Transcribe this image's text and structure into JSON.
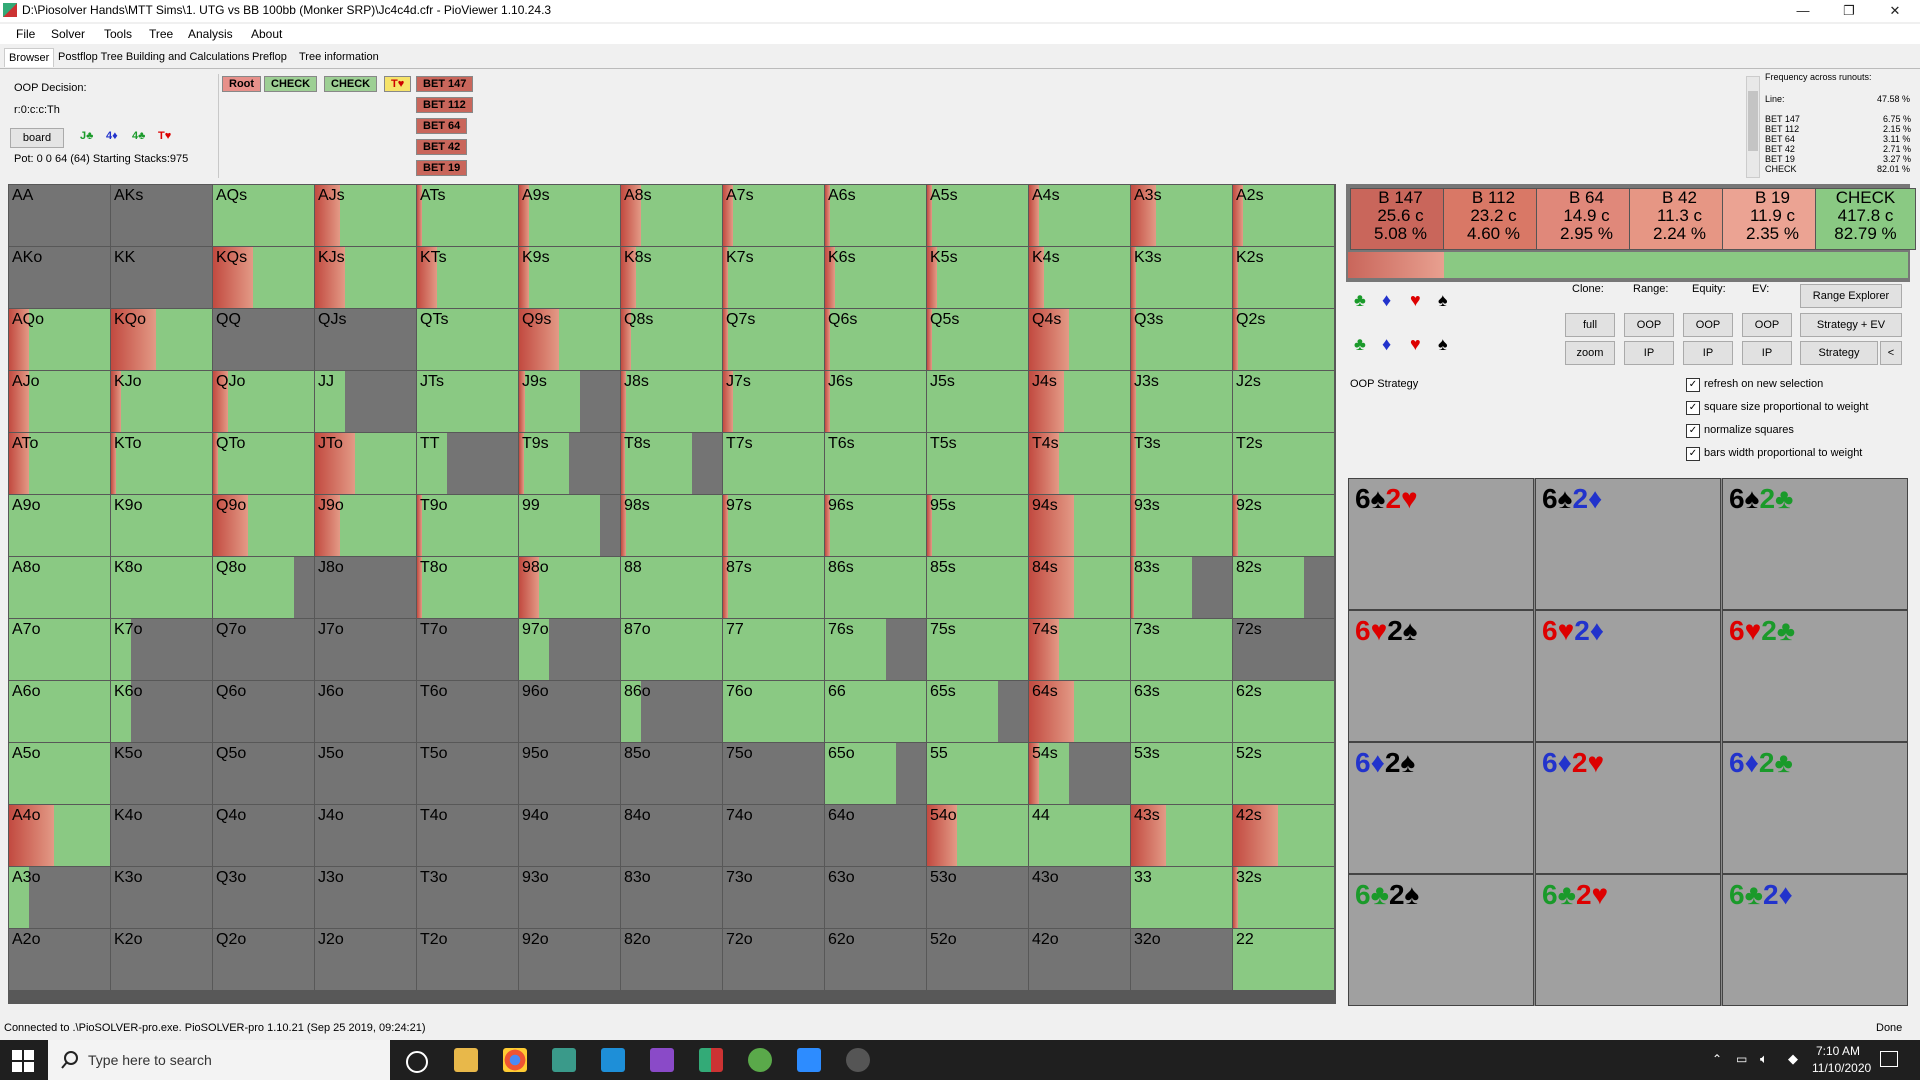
{
  "window": {
    "title": "D:\\Piosolver Hands\\MTT Sims\\1. UTG vs BB 100bb (Monker SRP)\\Jc4c4d.cfr - PioViewer 1.10.24.3",
    "minimize": "—",
    "maximize": "❐",
    "close": "✕"
  },
  "menu": [
    "File",
    "Solver",
    "Tools",
    "Tree",
    "Analysis",
    "About"
  ],
  "tabs": [
    "Browser",
    "Postflop Tree Building and Calculations",
    "Preflop",
    "Tree information"
  ],
  "info": {
    "decision": "OOP Decision:",
    "line": "r:0:c:c:Th",
    "board_button": "board",
    "board_cards": [
      "J♣",
      "4♦",
      "4♣",
      "T♥"
    ],
    "pot": "Pot: 0 0 64 (64) Starting Stacks:975"
  },
  "actions": {
    "root": "Root",
    "check1": "CHECK",
    "check2": "CHECK",
    "card": "T♥",
    "bets": [
      "BET 147",
      "BET 112",
      "BET 64",
      "BET 42",
      "BET 19"
    ]
  },
  "freq_panel": {
    "title": "Frequency across runouts:",
    "line_label": "Line:",
    "line_value": "47.58 %",
    "rows": [
      {
        "label": "BET 147",
        "value": "6.75 %"
      },
      {
        "label": "BET 112",
        "value": "2.15 %"
      },
      {
        "label": "BET 64",
        "value": "3.11 %"
      },
      {
        "label": "BET 42",
        "value": "2.71 %"
      },
      {
        "label": "BET 19",
        "value": "3.27 %"
      },
      {
        "label": "CHECK",
        "value": "82.01 %"
      }
    ]
  },
  "strategy_summary": [
    {
      "name": "B 147",
      "combos": "25.6 c",
      "pct": "5.08 %",
      "color": "#c9665b"
    },
    {
      "name": "B 112",
      "combos": "23.2 c",
      "pct": "4.60 %",
      "color": "#d97866"
    },
    {
      "name": "B 64",
      "combos": "14.9 c",
      "pct": "2.95 %",
      "color": "#e0887a"
    },
    {
      "name": "B 42",
      "combos": "11.3 c",
      "pct": "2.24 %",
      "color": "#e69684"
    },
    {
      "name": "B 19",
      "combos": "11.9 c",
      "pct": "2.35 %",
      "color": "#eba393"
    },
    {
      "name": "CHECK",
      "combos": "417.8 c",
      "pct": "82.79 %",
      "color": "#8ac983"
    }
  ],
  "controls": {
    "clone": "Clone:",
    "range": "Range:",
    "equity": "Equity:",
    "ev": "EV:",
    "range_explorer": "Range Explorer",
    "full": "full",
    "zoom": "zoom",
    "oop": "OOP",
    "ip": "IP",
    "strategy_ev": "Strategy + EV",
    "strategy": "Strategy",
    "collapse": "<",
    "oop_strategy": "OOP Strategy"
  },
  "checkboxes": [
    {
      "label": "refresh on new selection",
      "checked": true
    },
    {
      "label": "square size proportional to weight",
      "checked": true
    },
    {
      "label": "normalize squares",
      "checked": true
    },
    {
      "label": "bars width proportional to weight",
      "checked": true
    }
  ],
  "combos": [
    [
      {
        "r1": "6",
        "s1": "♠",
        "c1": "#000",
        "r2": "2",
        "s2": "♥",
        "c2": "#d00"
      },
      {
        "r1": "6",
        "s1": "♠",
        "c1": "#000",
        "r2": "2",
        "s2": "♦",
        "c2": "#2233cc"
      },
      {
        "r1": "6",
        "s1": "♠",
        "c1": "#000",
        "r2": "2",
        "s2": "♣",
        "c2": "#1a9a2a"
      }
    ],
    [
      {
        "r1": "6",
        "s1": "♥",
        "c1": "#d00",
        "r2": "2",
        "s2": "♠",
        "c2": "#000"
      },
      {
        "r1": "6",
        "s1": "♥",
        "c1": "#d00",
        "r2": "2",
        "s2": "♦",
        "c2": "#2233cc"
      },
      {
        "r1": "6",
        "s1": "♥",
        "c1": "#d00",
        "r2": "2",
        "s2": "♣",
        "c2": "#1a9a2a"
      }
    ],
    [
      {
        "r1": "6",
        "s1": "♦",
        "c1": "#2233cc",
        "r2": "2",
        "s2": "♠",
        "c2": "#000"
      },
      {
        "r1": "6",
        "s1": "♦",
        "c1": "#2233cc",
        "r2": "2",
        "s2": "♥",
        "c2": "#d00"
      },
      {
        "r1": "6",
        "s1": "♦",
        "c1": "#2233cc",
        "r2": "2",
        "s2": "♣",
        "c2": "#1a9a2a"
      }
    ],
    [
      {
        "r1": "6",
        "s1": "♣",
        "c1": "#1a9a2a",
        "r2": "2",
        "s2": "♠",
        "c2": "#000"
      },
      {
        "r1": "6",
        "s1": "♣",
        "c1": "#1a9a2a",
        "r2": "2",
        "s2": "♥",
        "c2": "#d00"
      },
      {
        "r1": "6",
        "s1": "♣",
        "c1": "#1a9a2a",
        "r2": "2",
        "s2": "♦",
        "c2": "#2233cc"
      }
    ]
  ],
  "grid": {
    "rows": [
      [
        "AA",
        "AKs",
        "AQs",
        "AJs",
        "ATs",
        "A9s",
        "A8s",
        "A7s",
        "A6s",
        "A5s",
        "A4s",
        "A3s",
        "A2s"
      ],
      [
        "AKo",
        "KK",
        "KQs",
        "KJs",
        "KTs",
        "K9s",
        "K8s",
        "K7s",
        "K6s",
        "K5s",
        "K4s",
        "K3s",
        "K2s"
      ],
      [
        "AQo",
        "KQo",
        "QQ",
        "QJs",
        "QTs",
        "Q9s",
        "Q8s",
        "Q7s",
        "Q6s",
        "Q5s",
        "Q4s",
        "Q3s",
        "Q2s"
      ],
      [
        "AJo",
        "KJo",
        "QJo",
        "JJ",
        "JTs",
        "J9s",
        "J8s",
        "J7s",
        "J6s",
        "J5s",
        "J4s",
        "J3s",
        "J2s"
      ],
      [
        "ATo",
        "KTo",
        "QTo",
        "JTo",
        "TT",
        "T9s",
        "T8s",
        "T7s",
        "T6s",
        "T5s",
        "T4s",
        "T3s",
        "T2s"
      ],
      [
        "A9o",
        "K9o",
        "Q9o",
        "J9o",
        "T9o",
        "99",
        "98s",
        "97s",
        "96s",
        "95s",
        "94s",
        "93s",
        "92s"
      ],
      [
        "A8o",
        "K8o",
        "Q8o",
        "J8o",
        "T8o",
        "98o",
        "88",
        "87s",
        "86s",
        "85s",
        "84s",
        "83s",
        "82s"
      ],
      [
        "A7o",
        "K7o",
        "Q7o",
        "J7o",
        "T7o",
        "97o",
        "87o",
        "77",
        "76s",
        "75s",
        "74s",
        "73s",
        "72s"
      ],
      [
        "A6o",
        "K6o",
        "Q6o",
        "J6o",
        "T6o",
        "96o",
        "86o",
        "76o",
        "66",
        "65s",
        "64s",
        "63s",
        "62s"
      ],
      [
        "A5o",
        "K5o",
        "Q5o",
        "J5o",
        "T5o",
        "95o",
        "85o",
        "75o",
        "65o",
        "55",
        "54s",
        "53s",
        "52s"
      ],
      [
        "A4o",
        "K4o",
        "Q4o",
        "J4o",
        "T4o",
        "94o",
        "84o",
        "74o",
        "64o",
        "54o",
        "44",
        "43s",
        "42s"
      ],
      [
        "A3o",
        "K3o",
        "Q3o",
        "J3o",
        "T3o",
        "93o",
        "83o",
        "73o",
        "63o",
        "53o",
        "43o",
        "33",
        "32s"
      ],
      [
        "A2o",
        "K2o",
        "Q2o",
        "J2o",
        "T2o",
        "92o",
        "82o",
        "72o",
        "62o",
        "52o",
        "42o",
        "32o",
        "22"
      ]
    ],
    "weights": [
      [
        0,
        0,
        1,
        1,
        1,
        1,
        1,
        1,
        1,
        1,
        1,
        1,
        1
      ],
      [
        0,
        0,
        1,
        1,
        1,
        1,
        1,
        1,
        1,
        1,
        1,
        1,
        1
      ],
      [
        1,
        1,
        0,
        0,
        1,
        1,
        1,
        1,
        1,
        1,
        1,
        1,
        1
      ],
      [
        1,
        1,
        1,
        0.3,
        1,
        0.6,
        1,
        1,
        1,
        1,
        1,
        1,
        1
      ],
      [
        1,
        1,
        1,
        1,
        0.3,
        0.5,
        0.7,
        1,
        1,
        1,
        1,
        1,
        1
      ],
      [
        1,
        1,
        1,
        1,
        1,
        0.8,
        1,
        1,
        1,
        1,
        1,
        1,
        1
      ],
      [
        1,
        1,
        0.8,
        0,
        1,
        1,
        1,
        1,
        1,
        1,
        1,
        0.6,
        0.7
      ],
      [
        1,
        0.2,
        0,
        0,
        0,
        0.3,
        1,
        1,
        0.6,
        1,
        1,
        1,
        0
      ],
      [
        1,
        0.2,
        0,
        0,
        0,
        0,
        0.2,
        1,
        1,
        0.7,
        1,
        1,
        1
      ],
      [
        1,
        0,
        0,
        0,
        0,
        0,
        0,
        0,
        0.7,
        1,
        0.4,
        1,
        1
      ],
      [
        1,
        0,
        0,
        0,
        0,
        0,
        0,
        0,
        0,
        1,
        1,
        1,
        1
      ],
      [
        0.2,
        0,
        0,
        0,
        0,
        0,
        0,
        0,
        0,
        0,
        0,
        1,
        1
      ],
      [
        0,
        0,
        0,
        0,
        0,
        0,
        0,
        0,
        0,
        0,
        0,
        0,
        1
      ]
    ],
    "bets": [
      [
        0,
        0,
        0,
        0.25,
        0.05,
        0.1,
        0.2,
        0.1,
        0.05,
        0.05,
        0.1,
        0.25,
        0.1
      ],
      [
        0,
        0,
        0.4,
        0.3,
        0.2,
        0.1,
        0.15,
        0.05,
        0.1,
        0.1,
        0.15,
        0.05,
        0.05
      ],
      [
        0.2,
        0.45,
        0,
        0,
        0,
        0.4,
        0.1,
        0.05,
        0.05,
        0.05,
        0.4,
        0.05,
        0.05
      ],
      [
        0.2,
        0.1,
        0.15,
        0,
        0,
        0.1,
        0.05,
        0.1,
        0.05,
        0,
        0.35,
        0.05,
        0
      ],
      [
        0.2,
        0.05,
        0.05,
        0.4,
        0,
        0.1,
        0.05,
        0,
        0,
        0,
        0.3,
        0.05,
        0
      ],
      [
        0,
        0,
        0.35,
        0.25,
        0.05,
        0,
        0.05,
        0.05,
        0.05,
        0.05,
        0.45,
        0.05,
        0.05
      ],
      [
        0,
        0,
        0,
        0,
        0.05,
        0.2,
        0,
        0.05,
        0,
        0,
        0.45,
        0.05,
        0
      ],
      [
        0,
        0,
        0,
        0,
        0,
        0,
        0,
        0,
        0,
        0,
        0.3,
        0,
        0
      ],
      [
        0,
        0,
        0,
        0,
        0,
        0,
        0,
        0,
        0,
        0,
        0.45,
        0,
        0
      ],
      [
        0,
        0,
        0,
        0,
        0,
        0,
        0,
        0,
        0,
        0,
        0.25,
        0,
        0
      ],
      [
        0.45,
        0,
        0,
        0,
        0,
        0,
        0,
        0,
        0,
        0.3,
        0,
        0.35,
        0.45
      ],
      [
        0,
        0,
        0,
        0,
        0,
        0,
        0,
        0,
        0,
        0,
        0,
        0,
        0.05
      ],
      [
        0,
        0,
        0,
        0,
        0,
        0,
        0,
        0,
        0,
        0,
        0,
        0,
        0
      ]
    ]
  },
  "status": {
    "left": "Connected to .\\PioSOLVER-pro.exe. PioSOLVER-pro 1.10.21 (Sep 25 2019, 09:24:21)",
    "right": "Done"
  },
  "taskbar": {
    "search_placeholder": "Type here to search",
    "time": "7:10 AM",
    "date": "11/10/2020"
  }
}
